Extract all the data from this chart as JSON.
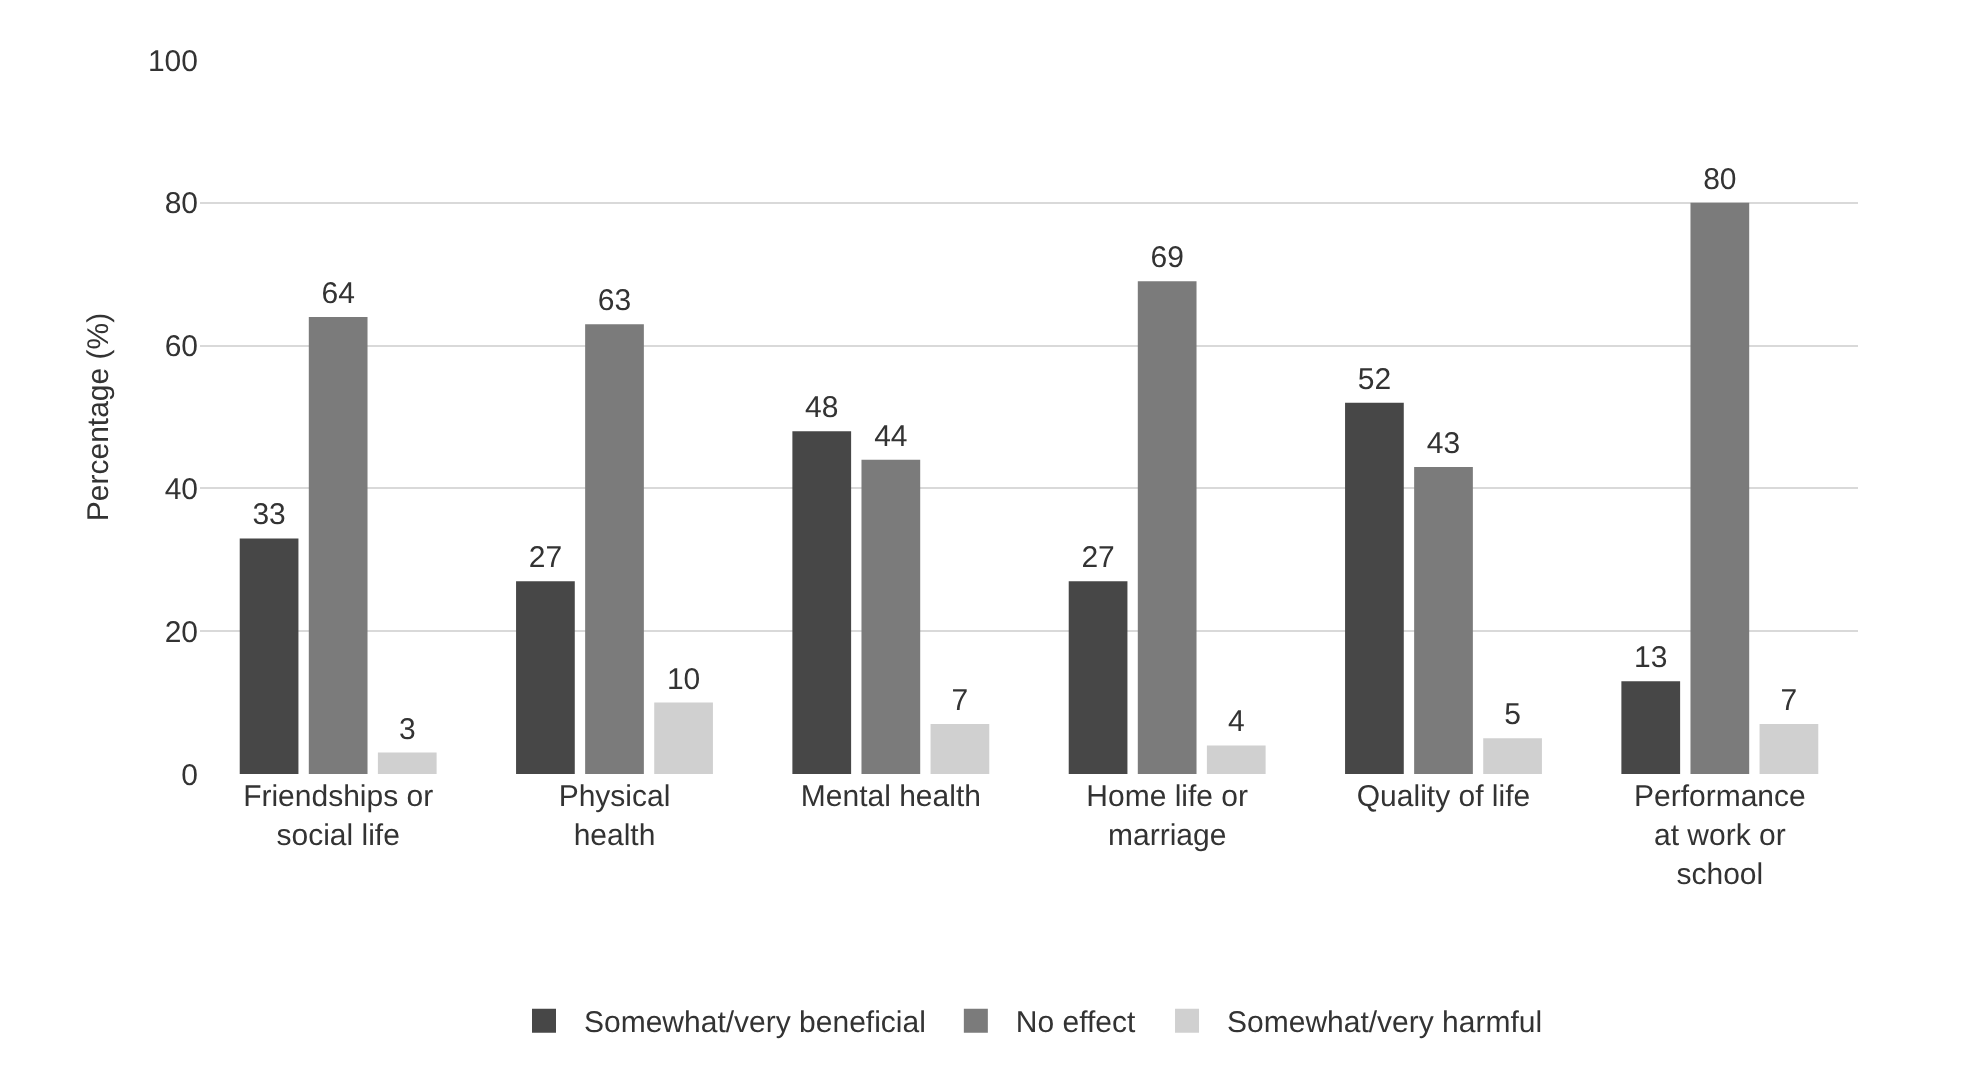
{
  "chart_data": {
    "type": "bar",
    "ylabel": "Percentage (%)",
    "categories": [
      "Friendships or\nsocial life",
      "Physical\nhealth",
      "Mental health",
      "Home life or\nmarriage",
      "Quality of life",
      "Performance\nat work or\nschool"
    ],
    "series": [
      {
        "name": "Somewhat/very beneficial",
        "color": "#474747",
        "values": [
          33,
          27,
          48,
          27,
          52,
          13
        ]
      },
      {
        "name": "No effect",
        "color": "#7b7b7b",
        "values": [
          64,
          63,
          44,
          69,
          43,
          80
        ]
      },
      {
        "name": "Somewhat/very harmful",
        "color": "#d0d0d0",
        "values": [
          3,
          10,
          7,
          4,
          5,
          7
        ]
      }
    ],
    "ylim": [
      0,
      100
    ],
    "yticks": [
      0,
      20,
      40,
      60,
      80,
      100
    ],
    "grid": "y",
    "legend": "bottom",
    "data_labels": true
  }
}
